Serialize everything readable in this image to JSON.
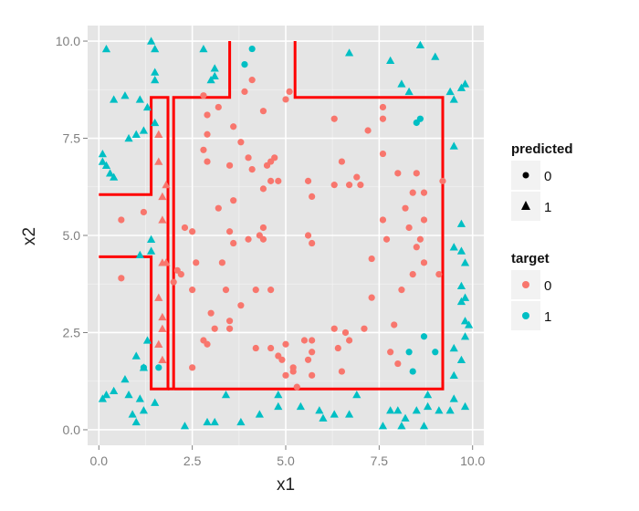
{
  "chart_data": {
    "type": "scatter",
    "title": "",
    "xlabel": "x1",
    "ylabel": "x2",
    "xlim": [
      -0.3,
      10.3
    ],
    "ylim": [
      -0.4,
      10.4
    ],
    "x_ticks": [
      0,
      2.5,
      5,
      7.5,
      10
    ],
    "y_ticks": [
      0,
      2.5,
      5,
      7.5,
      10
    ],
    "x_tick_labels": [
      "0.0",
      "2.5",
      "5.0",
      "7.5",
      "10.0"
    ],
    "y_tick_labels": [
      "0.0",
      "2.5",
      "5.0",
      "7.5",
      "10.0"
    ],
    "grid": true,
    "background": "#e5e5e5",
    "legend_position": "right",
    "colors": {
      "target_0": "#f8766d",
      "target_1": "#00bfc4",
      "boundary": "#ff0000",
      "legend_key": "#000000"
    },
    "legends": [
      {
        "title": "predicted",
        "entries": [
          {
            "label": "0",
            "shape": "circle"
          },
          {
            "label": "1",
            "shape": "triangle"
          }
        ]
      },
      {
        "title": "target",
        "entries": [
          {
            "label": "0",
            "color": "#f8766d"
          },
          {
            "label": "1",
            "color": "#00bfc4"
          }
        ]
      }
    ],
    "decision_boundary": [
      [
        [
          0,
          6.05
        ],
        [
          1.4,
          6.05
        ],
        [
          1.4,
          8.55
        ],
        [
          1.85,
          8.55
        ],
        [
          1.85,
          1.05
        ],
        [
          1.4,
          1.05
        ],
        [
          1.4,
          4.45
        ],
        [
          0,
          4.45
        ]
      ],
      [
        [
          2.0,
          1.05
        ],
        [
          2.0,
          8.55
        ],
        [
          3.5,
          8.55
        ],
        [
          3.5,
          10.0
        ]
      ],
      [
        [
          5.25,
          10.0
        ],
        [
          5.25,
          8.55
        ],
        [
          9.2,
          8.55
        ],
        [
          9.2,
          1.05
        ],
        [
          2.0,
          1.05
        ]
      ],
      [
        [
          1.85,
          1.05
        ],
        [
          2.0,
          1.05
        ]
      ]
    ],
    "series": [
      {
        "target": 1,
        "predicted": 1,
        "points": [
          [
            0.2,
            9.8
          ],
          [
            1.4,
            10.0
          ],
          [
            1.5,
            9.8
          ],
          [
            1.5,
            9.2
          ],
          [
            1.5,
            9.0
          ],
          [
            0.4,
            8.5
          ],
          [
            0.7,
            8.6
          ],
          [
            1.1,
            8.5
          ],
          [
            1.3,
            8.3
          ],
          [
            0.8,
            7.5
          ],
          [
            1.0,
            7.6
          ],
          [
            1.2,
            7.7
          ],
          [
            1.5,
            7.9
          ],
          [
            2.8,
            9.8
          ],
          [
            3.0,
            9.0
          ],
          [
            3.1,
            9.1
          ],
          [
            3.1,
            9.3
          ],
          [
            6.7,
            9.7
          ],
          [
            7.8,
            9.5
          ],
          [
            8.1,
            8.9
          ],
          [
            8.3,
            8.7
          ],
          [
            8.6,
            9.9
          ],
          [
            9.0,
            9.6
          ],
          [
            9.4,
            8.7
          ],
          [
            9.5,
            8.5
          ],
          [
            9.7,
            8.8
          ],
          [
            9.8,
            8.9
          ],
          [
            0.1,
            7.1
          ],
          [
            0.1,
            6.9
          ],
          [
            0.2,
            6.8
          ],
          [
            0.3,
            6.6
          ],
          [
            0.4,
            6.5
          ],
          [
            9.5,
            7.3
          ],
          [
            9.7,
            5.3
          ],
          [
            9.5,
            4.7
          ],
          [
            9.7,
            4.6
          ],
          [
            9.8,
            4.3
          ],
          [
            9.7,
            3.7
          ],
          [
            9.8,
            3.4
          ],
          [
            9.7,
            3.3
          ],
          [
            9.8,
            2.8
          ],
          [
            9.9,
            2.7
          ],
          [
            1.4,
            4.9
          ],
          [
            1.4,
            4.6
          ],
          [
            1.1,
            4.5
          ],
          [
            1.3,
            2.3
          ],
          [
            1.2,
            1.6
          ],
          [
            1.0,
            1.9
          ],
          [
            0.7,
            1.3
          ],
          [
            0.8,
            0.9
          ],
          [
            1.1,
            0.8
          ],
          [
            1.2,
            0.5
          ],
          [
            1.5,
            0.7
          ],
          [
            0.1,
            0.8
          ],
          [
            0.2,
            0.9
          ],
          [
            0.4,
            1.0
          ],
          [
            0.9,
            0.4
          ],
          [
            1.0,
            0.2
          ],
          [
            2.3,
            0.1
          ],
          [
            2.9,
            0.2
          ],
          [
            3.1,
            0.2
          ],
          [
            3.4,
            0.9
          ],
          [
            3.8,
            0.2
          ],
          [
            4.3,
            0.4
          ],
          [
            4.8,
            0.9
          ],
          [
            4.8,
            0.6
          ],
          [
            5.4,
            0.6
          ],
          [
            5.9,
            0.5
          ],
          [
            6.0,
            0.3
          ],
          [
            6.3,
            0.4
          ],
          [
            6.7,
            0.4
          ],
          [
            6.9,
            0.9
          ],
          [
            7.6,
            0.1
          ],
          [
            7.8,
            0.5
          ],
          [
            8.0,
            0.5
          ],
          [
            8.1,
            0.1
          ],
          [
            8.2,
            0.3
          ],
          [
            8.5,
            0.5
          ],
          [
            8.7,
            0.1
          ],
          [
            8.8,
            0.6
          ],
          [
            9.1,
            0.5
          ],
          [
            9.4,
            0.5
          ],
          [
            9.5,
            0.8
          ],
          [
            9.8,
            0.6
          ],
          [
            9.5,
            2.1
          ],
          [
            9.7,
            1.8
          ],
          [
            9.5,
            1.4
          ],
          [
            9.8,
            2.4
          ],
          [
            8.8,
            0.9
          ]
        ]
      },
      {
        "target": 0,
        "predicted": 1,
        "points": [
          [
            1.6,
            7.6
          ],
          [
            1.6,
            6.9
          ],
          [
            1.7,
            5.4
          ],
          [
            1.7,
            4.3
          ],
          [
            1.6,
            3.4
          ],
          [
            1.7,
            2.9
          ],
          [
            1.7,
            2.6
          ],
          [
            1.6,
            2.2
          ],
          [
            1.7,
            1.8
          ],
          [
            1.8,
            4.3
          ],
          [
            1.8,
            6.3
          ],
          [
            1.7,
            6.0
          ]
        ]
      },
      {
        "target": 1,
        "predicted": 0,
        "points": [
          [
            4.1,
            9.8
          ],
          [
            3.9,
            9.4
          ],
          [
            8.6,
            8.0
          ],
          [
            8.5,
            7.9
          ],
          [
            8.7,
            2.4
          ],
          [
            8.3,
            2.0
          ],
          [
            9.0,
            2.0
          ],
          [
            8.4,
            1.5
          ],
          [
            1.2,
            1.6
          ],
          [
            1.6,
            1.6
          ]
        ]
      },
      {
        "target": 0,
        "predicted": 0,
        "points": [
          [
            4.1,
            9.0
          ],
          [
            3.9,
            8.7
          ],
          [
            4.4,
            8.2
          ],
          [
            5.0,
            8.5
          ],
          [
            5.1,
            8.7
          ],
          [
            2.8,
            8.6
          ],
          [
            2.9,
            8.1
          ],
          [
            3.2,
            8.3
          ],
          [
            6.3,
            8.0
          ],
          [
            7.2,
            7.7
          ],
          [
            7.6,
            8.3
          ],
          [
            7.6,
            8.0
          ],
          [
            3.6,
            7.8
          ],
          [
            3.8,
            7.4
          ],
          [
            4.0,
            7.0
          ],
          [
            4.1,
            6.7
          ],
          [
            2.9,
            7.6
          ],
          [
            2.9,
            6.9
          ],
          [
            2.8,
            7.2
          ],
          [
            3.5,
            6.8
          ],
          [
            4.7,
            7.0
          ],
          [
            4.6,
            6.9
          ],
          [
            4.5,
            6.8
          ],
          [
            4.6,
            6.4
          ],
          [
            4.8,
            6.4
          ],
          [
            4.4,
            6.2
          ],
          [
            5.6,
            6.4
          ],
          [
            5.7,
            6.0
          ],
          [
            6.3,
            6.3
          ],
          [
            6.5,
            6.9
          ],
          [
            6.7,
            6.3
          ],
          [
            6.9,
            6.5
          ],
          [
            7.0,
            6.3
          ],
          [
            7.6,
            7.1
          ],
          [
            8.0,
            6.6
          ],
          [
            8.5,
            6.6
          ],
          [
            8.4,
            6.1
          ],
          [
            8.7,
            6.1
          ],
          [
            9.2,
            6.4
          ],
          [
            3.2,
            5.7
          ],
          [
            3.6,
            5.9
          ],
          [
            2.3,
            5.2
          ],
          [
            2.5,
            5.1
          ],
          [
            3.5,
            5.1
          ],
          [
            3.6,
            4.8
          ],
          [
            3.3,
            4.3
          ],
          [
            4.0,
            4.9
          ],
          [
            4.4,
            5.2
          ],
          [
            4.3,
            5.0
          ],
          [
            4.4,
            4.9
          ],
          [
            5.6,
            5.0
          ],
          [
            5.7,
            4.8
          ],
          [
            7.6,
            5.4
          ],
          [
            7.7,
            4.9
          ],
          [
            8.2,
            5.7
          ],
          [
            8.3,
            5.2
          ],
          [
            8.7,
            5.4
          ],
          [
            8.6,
            4.9
          ],
          [
            8.5,
            4.7
          ],
          [
            7.3,
            4.4
          ],
          [
            8.7,
            4.3
          ],
          [
            1.2,
            5.6
          ],
          [
            0.6,
            5.4
          ],
          [
            0.6,
            3.9
          ],
          [
            2.1,
            4.1
          ],
          [
            2.2,
            4.0
          ],
          [
            2.6,
            4.3
          ],
          [
            2.5,
            3.6
          ],
          [
            2.0,
            3.8
          ],
          [
            3.0,
            3.0
          ],
          [
            3.4,
            3.6
          ],
          [
            3.5,
            2.8
          ],
          [
            3.5,
            2.6
          ],
          [
            3.8,
            3.2
          ],
          [
            4.2,
            3.6
          ],
          [
            4.6,
            3.6
          ],
          [
            3.1,
            2.6
          ],
          [
            2.8,
            2.3
          ],
          [
            2.9,
            2.2
          ],
          [
            4.2,
            2.1
          ],
          [
            4.6,
            2.1
          ],
          [
            4.8,
            1.9
          ],
          [
            4.9,
            1.8
          ],
          [
            5.0,
            2.2
          ],
          [
            5.2,
            1.6
          ],
          [
            5.0,
            1.4
          ],
          [
            5.3,
            1.1
          ],
          [
            5.5,
            2.3
          ],
          [
            5.6,
            1.8
          ],
          [
            5.7,
            2.3
          ],
          [
            5.7,
            2.0
          ],
          [
            6.3,
            2.6
          ],
          [
            6.6,
            2.5
          ],
          [
            6.4,
            2.1
          ],
          [
            6.7,
            2.3
          ],
          [
            7.1,
            2.6
          ],
          [
            7.3,
            3.4
          ],
          [
            7.9,
            2.7
          ],
          [
            7.8,
            2.0
          ],
          [
            8.0,
            1.7
          ],
          [
            8.4,
            4.0
          ],
          [
            9.1,
            4.0
          ],
          [
            8.1,
            3.6
          ],
          [
            6.5,
            1.5
          ],
          [
            5.7,
            1.4
          ],
          [
            2.5,
            1.6
          ],
          [
            5.2,
            1.5
          ]
        ]
      }
    ]
  }
}
